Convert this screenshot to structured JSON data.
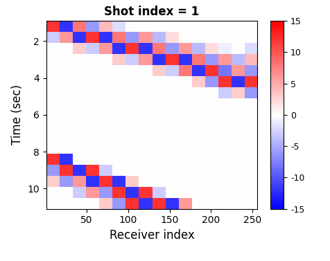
{
  "chart_data": {
    "type": "heatmap",
    "title": "Shot index = 1",
    "x_label": "Receiver index",
    "y_label": "Time (sec)",
    "x_edges": [
      1,
      17,
      33,
      49,
      65,
      81,
      97,
      113,
      129,
      145,
      161,
      177,
      193,
      209,
      225,
      241,
      257
    ],
    "y_edges": [
      0.9,
      1.5,
      2.1,
      2.7,
      3.3,
      3.9,
      4.5,
      5.1,
      5.7,
      6.3,
      6.9,
      7.5,
      8.1,
      8.7,
      9.3,
      9.9,
      10.5,
      11.1
    ],
    "cells": [
      [
        12,
        -12,
        8,
        -6,
        4,
        -2,
        0,
        0,
        0,
        0,
        0,
        0,
        0,
        0,
        0,
        0
      ],
      [
        -3,
        6,
        -12,
        12,
        -12,
        8,
        -6,
        6,
        -4,
        2,
        0,
        0,
        0,
        0,
        0,
        0
      ],
      [
        0,
        0,
        3,
        -3,
        6,
        -12,
        12,
        -12,
        8,
        -6,
        6,
        -4,
        2,
        -1,
        0,
        -2
      ],
      [
        0,
        0,
        0,
        0,
        0,
        3,
        -3,
        6,
        -12,
        12,
        -12,
        8,
        -6,
        6,
        -4,
        4
      ],
      [
        0,
        0,
        0,
        0,
        0,
        0,
        0,
        0,
        3,
        -3,
        8,
        -12,
        12,
        -8,
        6,
        -6
      ],
      [
        0,
        0,
        0,
        0,
        0,
        0,
        0,
        0,
        0,
        0,
        0,
        3,
        -6,
        12,
        -12,
        12
      ],
      [
        0,
        0,
        0,
        0,
        0,
        0,
        0,
        0,
        0,
        0,
        0,
        0,
        0,
        -3,
        3,
        -6
      ],
      [
        0,
        0,
        0,
        0,
        0,
        0,
        0,
        0,
        0,
        0,
        0,
        0,
        0,
        0,
        0,
        0
      ],
      [
        0,
        0,
        0,
        0,
        0,
        0,
        0,
        0,
        0,
        0,
        0,
        0,
        0,
        0,
        0,
        0
      ],
      [
        0,
        0,
        0,
        0,
        0,
        0,
        0,
        0,
        0,
        0,
        0,
        0,
        0,
        0,
        0,
        0
      ],
      [
        0,
        0,
        0,
        0,
        0,
        0,
        0,
        0,
        0,
        0,
        0,
        0,
        0,
        0,
        0,
        0
      ],
      [
        0,
        0,
        0,
        0,
        0,
        0,
        0,
        0,
        0,
        0,
        0,
        0,
        0,
        0,
        0,
        0
      ],
      [
        12,
        -12,
        0,
        0,
        0,
        0,
        0,
        0,
        0,
        0,
        0,
        0,
        0,
        0,
        0,
        0
      ],
      [
        -6,
        12,
        -12,
        12,
        -3,
        0,
        0,
        0,
        0,
        0,
        0,
        0,
        0,
        0,
        0,
        0
      ],
      [
        3,
        -6,
        6,
        -12,
        12,
        -12,
        3,
        0,
        0,
        0,
        0,
        0,
        0,
        0,
        0,
        0
      ],
      [
        0,
        0,
        -3,
        6,
        -6,
        12,
        -12,
        12,
        -3,
        0,
        0,
        0,
        0,
        0,
        0,
        0
      ],
      [
        0,
        0,
        0,
        0,
        3,
        -6,
        12,
        -12,
        12,
        -12,
        6,
        0,
        0,
        0,
        0,
        0
      ]
    ],
    "xlim": [
      1,
      256
    ],
    "ylim": [
      11.1,
      0.9
    ],
    "xticks": [
      50,
      100,
      150,
      200,
      250
    ],
    "yticks": [
      2,
      4,
      6,
      8,
      10
    ],
    "color_range": [
      -15,
      15
    ],
    "color_ticks": [
      -15,
      -10,
      -5,
      0,
      5,
      10,
      15
    ]
  }
}
